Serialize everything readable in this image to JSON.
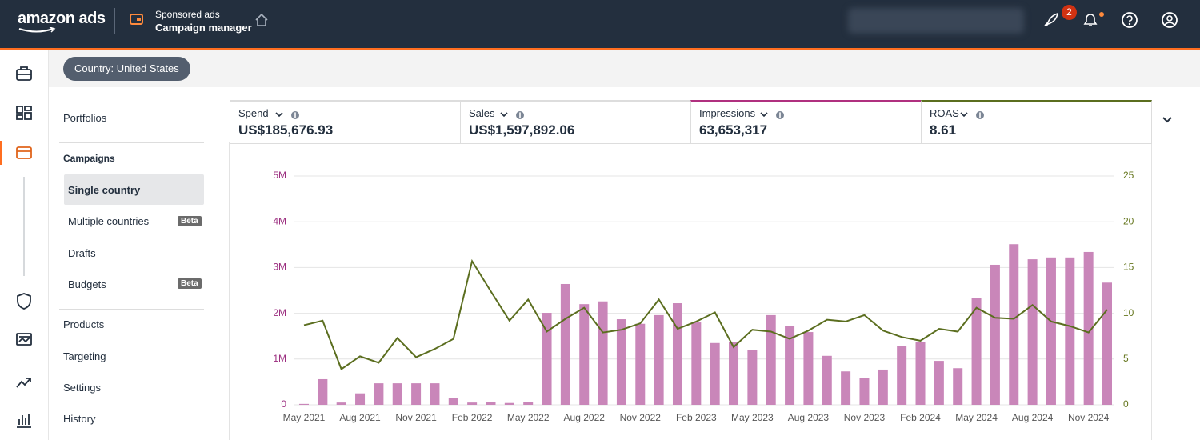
{
  "header": {
    "logo": "amazon ads",
    "product": "Sponsored ads",
    "page": "Campaign manager",
    "notification_count": "2"
  },
  "country_button": "Country: United States",
  "sidebar": {
    "items": [
      "Portfolios",
      "Campaigns",
      "Single country",
      "Multiple countries",
      "Drafts",
      "Budgets",
      "Products",
      "Targeting",
      "Settings",
      "History"
    ],
    "badges": [
      "Beta",
      "Beta"
    ]
  },
  "metrics": [
    {
      "label": "Spend",
      "value": "US$185,676.93"
    },
    {
      "label": "Sales",
      "value": "US$1,597,892.06"
    },
    {
      "label": "Impressions",
      "value": "63,653,317"
    },
    {
      "label": "ROAS",
      "value": "8.61"
    }
  ],
  "chart_data": {
    "type": "bar-line",
    "categories": [
      "May 2021",
      null,
      null,
      "Aug 2021",
      null,
      null,
      "Nov 2021",
      null,
      null,
      "Feb 2022",
      null,
      null,
      "May 2022",
      null,
      null,
      "Aug 2022",
      null,
      null,
      "Nov 2022",
      null,
      null,
      "Feb 2023",
      null,
      null,
      "May 2023",
      null,
      null,
      "Aug 2023",
      null,
      null,
      "Nov 2023",
      null,
      null,
      "Feb 2024",
      null,
      null,
      "May 2024",
      null,
      null,
      "Aug 2024",
      null,
      null,
      "Nov 2024",
      null
    ],
    "series": [
      {
        "type": "bar",
        "color": "#c986b9",
        "values": [
          20000,
          560000,
          50000,
          250000,
          470000,
          470000,
          470000,
          470000,
          150000,
          50000,
          60000,
          40000,
          60000,
          2010000,
          2640000,
          2200000,
          2260000,
          1870000,
          1770000,
          1960000,
          2220000,
          1800000,
          1350000,
          1380000,
          1190000,
          1960000,
          1730000,
          1590000,
          1070000,
          730000,
          590000,
          770000,
          1280000,
          1380000,
          960000,
          800000,
          2330000,
          3060000,
          3510000,
          3180000,
          3220000,
          3220000,
          3340000,
          2670000
        ]
      },
      {
        "type": "line",
        "color": "#5b6e1f",
        "axis": "y2",
        "values": [
          8.7,
          9.2,
          3.9,
          5.3,
          4.6,
          7.3,
          5.2,
          6.1,
          7.2,
          15.7,
          12.4,
          9.2,
          11.5,
          8.0,
          9.4,
          10.6,
          7.9,
          8.2,
          8.9,
          11.5,
          8.3,
          9.1,
          10.1,
          6.3,
          8.2,
          8.0,
          7.2,
          8.1,
          9.3,
          9.1,
          9.8,
          8.1,
          7.4,
          7.0,
          8.3,
          8.0,
          10.6,
          9.5,
          9.4,
          10.9,
          9.1,
          8.6,
          7.9,
          10.4
        ]
      }
    ],
    "ylim": [
      0,
      5000000
    ],
    "yticks": [
      0,
      {
        "value": 1000000,
        "label": "1M"
      },
      {
        "value": 2000000,
        "label": "2M"
      },
      {
        "value": 3000000,
        "label": "3M"
      },
      {
        "value": 4000000,
        "label": "4M"
      },
      {
        "value": 5000000,
        "label": "5M"
      }
    ],
    "y2lim": [
      0,
      25
    ],
    "y2ticks": [
      0,
      5,
      10,
      15,
      20,
      25
    ],
    "grid": true,
    "y_color": "#9b2d7f",
    "y2_color": "#66771f"
  }
}
